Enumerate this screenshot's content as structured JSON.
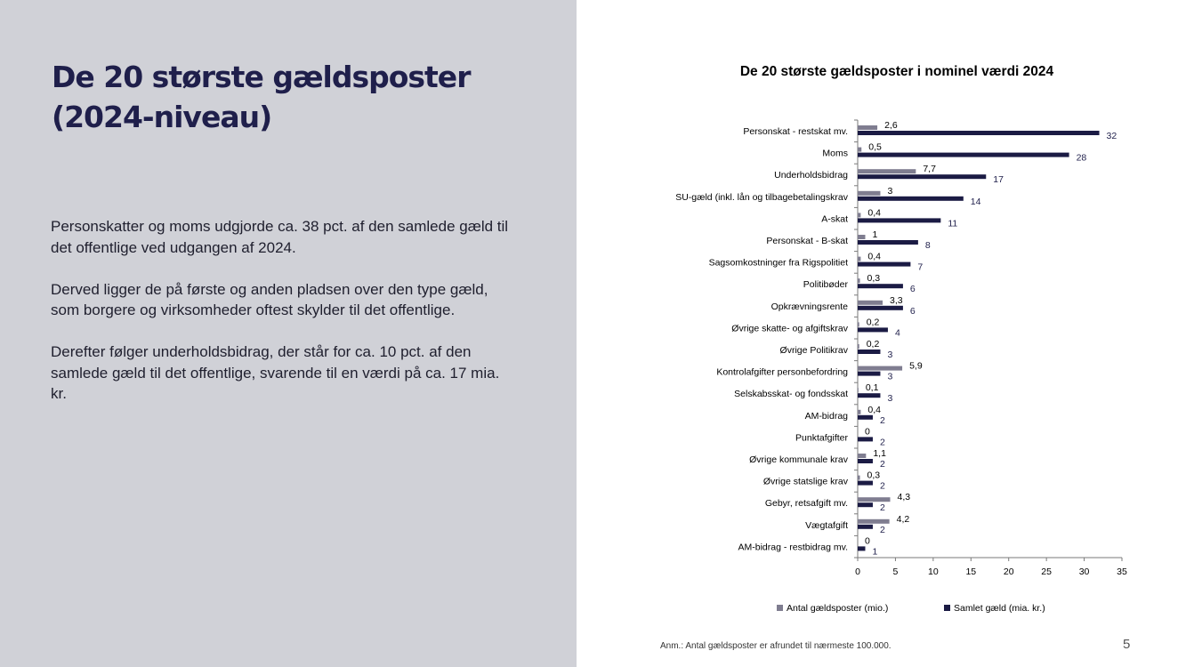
{
  "slide": {
    "title_line1": "De 20 største gældsposter",
    "title_line2": "(2024-niveau)",
    "paragraphs": [
      "Personskatter og moms udgjorde ca. 38 pct. af den samlede gæld til det offentlige ved udgangen af 2024.",
      "Derved ligger de på første og anden pladsen over den type gæld, som borgere og virksomheder oftest skylder til det offentlige.",
      "Derefter følger underholdsbidrag, der står for ca. 10 pct. af den samlede gæld til det offentlige, svarende til en værdi på ca. 17 mia. kr."
    ],
    "footnote": "Anm.: Antal gældsposter er afrundet til nærmeste 100.000.",
    "page_number": "5"
  },
  "colors": {
    "left_panel": "#d0d1d7",
    "title": "#1f1f4b",
    "series_count": "#7f7d90",
    "series_debt": "#1b1b44"
  },
  "chart_data": {
    "type": "bar",
    "orientation": "horizontal",
    "title": "De 20 største gældsposter i nominel værdi 2024",
    "categories": [
      "Personskat - restskat mv.",
      "Moms",
      "Underholdsbidrag",
      "SU-gæld (inkl. lån og tilbagebetalingskrav",
      "A-skat",
      "Personskat - B-skat",
      "Sagsomkostninger fra Rigspolitiet",
      "Politibøder",
      "Opkrævningsrente",
      "Øvrige skatte- og afgiftskrav",
      "Øvrige Politikrav",
      "Kontrolafgifter personbefordring",
      "Selskabsskat- og fondsskat",
      "AM-bidrag",
      "Punktafgifter",
      "Øvrige kommunale krav",
      "Øvrige statslige krav",
      "Gebyr, retsafgift mv.",
      "Vægtafgift",
      "AM-bidrag - restbidrag mv."
    ],
    "series": [
      {
        "name": "Antal gældsposter (mio.)",
        "values": [
          2.6,
          0.5,
          7.7,
          3,
          0.4,
          1,
          0.4,
          0.3,
          3.3,
          0.2,
          0.2,
          5.9,
          0.1,
          0.4,
          0,
          1.1,
          0.3,
          4.3,
          4.2,
          0
        ],
        "labels": [
          "2,6",
          "0,5",
          "7,7",
          "3",
          "0,4",
          "1",
          "0,4",
          "0,3",
          "3,3",
          "0,2",
          "0,2",
          "5,9",
          "0,1",
          "0,4",
          "0",
          "1,1",
          "0,3",
          "4,3",
          "4,2",
          "0"
        ],
        "color": "#7f7d90"
      },
      {
        "name": "Samlet gæld (mia. kr.)",
        "values": [
          32,
          28,
          17,
          14,
          11,
          8,
          7,
          6,
          6,
          4,
          3,
          3,
          3,
          2,
          2,
          2,
          2,
          2,
          2,
          1
        ],
        "labels": [
          "32",
          "28",
          "17",
          "14",
          "11",
          "8",
          "7",
          "6",
          "6",
          "4",
          "3",
          "3",
          "3",
          "2",
          "2",
          "2",
          "2",
          "2",
          "2",
          "1"
        ],
        "color": "#1b1b44"
      }
    ],
    "xlim": [
      0,
      35
    ],
    "xticks": [
      0,
      5,
      10,
      15,
      20,
      25,
      30,
      35
    ],
    "grid": false,
    "legend_position": "bottom"
  }
}
